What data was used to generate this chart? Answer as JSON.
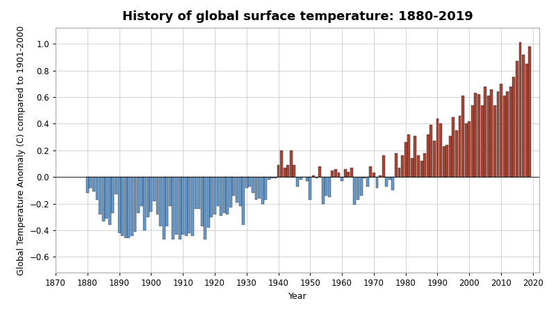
{
  "title": "History of global surface temperature: 1880-2019",
  "xlabel": "Year",
  "ylabel": "Global Temperature Anomaly (C) compared to 1901-2000",
  "ylim": [
    -0.72,
    1.12
  ],
  "xlim": [
    1871,
    2022
  ],
  "xticks": [
    1870,
    1880,
    1890,
    1900,
    1910,
    1920,
    1930,
    1940,
    1950,
    1960,
    1970,
    1980,
    1990,
    2000,
    2010,
    2020
  ],
  "yticks": [
    -0.6,
    -0.4,
    -0.2,
    0.0,
    0.2,
    0.4,
    0.6,
    0.8,
    1.0
  ],
  "color_negative": "#6699cc",
  "color_positive": "#aa4433",
  "background_color": "#ffffff",
  "grid_color": "#cccccc",
  "title_fontsize": 13,
  "axis_label_fontsize": 9,
  "tick_fontsize": 8.5,
  "years": [
    1880,
    1881,
    1882,
    1883,
    1884,
    1885,
    1886,
    1887,
    1888,
    1889,
    1890,
    1891,
    1892,
    1893,
    1894,
    1895,
    1896,
    1897,
    1898,
    1899,
    1900,
    1901,
    1902,
    1903,
    1904,
    1905,
    1906,
    1907,
    1908,
    1909,
    1910,
    1911,
    1912,
    1913,
    1914,
    1915,
    1916,
    1917,
    1918,
    1919,
    1920,
    1921,
    1922,
    1923,
    1924,
    1925,
    1926,
    1927,
    1928,
    1929,
    1930,
    1931,
    1932,
    1933,
    1934,
    1935,
    1936,
    1937,
    1938,
    1939,
    1940,
    1941,
    1942,
    1943,
    1944,
    1945,
    1946,
    1947,
    1948,
    1949,
    1950,
    1951,
    1952,
    1953,
    1954,
    1955,
    1956,
    1957,
    1958,
    1959,
    1960,
    1961,
    1962,
    1963,
    1964,
    1965,
    1966,
    1967,
    1968,
    1969,
    1970,
    1971,
    1972,
    1973,
    1974,
    1975,
    1976,
    1977,
    1978,
    1979,
    1980,
    1981,
    1982,
    1983,
    1984,
    1985,
    1986,
    1987,
    1988,
    1989,
    1990,
    1991,
    1992,
    1993,
    1994,
    1995,
    1996,
    1997,
    1998,
    1999,
    2000,
    2001,
    2002,
    2003,
    2004,
    2005,
    2006,
    2007,
    2008,
    2009,
    2010,
    2011,
    2012,
    2013,
    2014,
    2015,
    2016,
    2017,
    2018,
    2019
  ],
  "anomalies": [
    -0.12,
    -0.08,
    -0.11,
    -0.17,
    -0.28,
    -0.33,
    -0.31,
    -0.36,
    -0.27,
    -0.13,
    -0.42,
    -0.44,
    -0.46,
    -0.46,
    -0.44,
    -0.41,
    -0.27,
    -0.22,
    -0.4,
    -0.3,
    -0.26,
    -0.18,
    -0.28,
    -0.37,
    -0.47,
    -0.37,
    -0.22,
    -0.47,
    -0.43,
    -0.47,
    -0.43,
    -0.44,
    -0.42,
    -0.44,
    -0.24,
    -0.24,
    -0.37,
    -0.47,
    -0.38,
    -0.3,
    -0.28,
    -0.22,
    -0.29,
    -0.27,
    -0.28,
    -0.23,
    -0.14,
    -0.19,
    -0.22,
    -0.36,
    -0.08,
    -0.07,
    -0.12,
    -0.17,
    -0.16,
    -0.2,
    -0.17,
    -0.02,
    -0.01,
    -0.01,
    0.09,
    0.2,
    0.07,
    0.09,
    0.2,
    0.09,
    -0.07,
    -0.02,
    0.0,
    -0.03,
    -0.17,
    0.01,
    -0.01,
    0.08,
    -0.2,
    -0.14,
    -0.15,
    0.05,
    0.06,
    0.03,
    -0.03,
    0.06,
    0.04,
    0.07,
    -0.21,
    -0.17,
    -0.14,
    -0.01,
    -0.07,
    0.08,
    0.03,
    -0.08,
    0.01,
    0.16,
    -0.07,
    -0.02,
    -0.1,
    0.18,
    0.07,
    0.16,
    0.26,
    0.32,
    0.14,
    0.31,
    0.16,
    0.12,
    0.18,
    0.32,
    0.39,
    0.27,
    0.44,
    0.4,
    0.23,
    0.24,
    0.31,
    0.45,
    0.35,
    0.46,
    0.61,
    0.4,
    0.42,
    0.54,
    0.63,
    0.62,
    0.54,
    0.68,
    0.61,
    0.66,
    0.54,
    0.64,
    0.7,
    0.61,
    0.64,
    0.68,
    0.75,
    0.87,
    1.01,
    0.92,
    0.85,
    0.98
  ]
}
